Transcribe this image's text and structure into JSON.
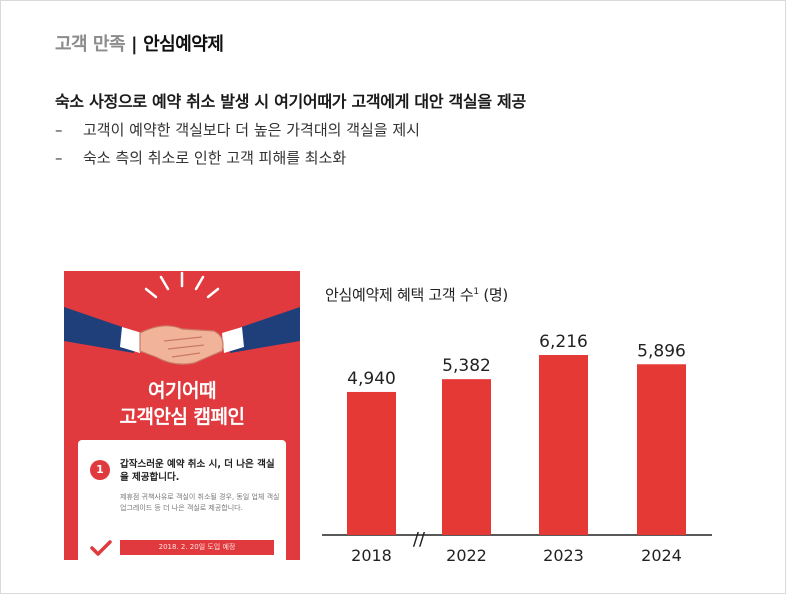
{
  "header": {
    "category": "고객 만족",
    "separator": "|",
    "topic": "안심예약제"
  },
  "lead": "숙소 사정으로 예약 취소 발생 시 여기어때가 고객에게 대안 객실을 제공",
  "bullets": [
    "고객이 예약한 객실보다 더 높은 가격대의 객실을 제시",
    "숙소 측의 취소로 인한 고객 피해를 최소화"
  ],
  "bullet_marker": "–",
  "poster": {
    "title_line1": "여기어때",
    "title_line2": "고객안심 캠페인",
    "card_number": "1",
    "card_heading": "갑작스러운 예약 취소 시, 더 나은 객실을 제공합니다.",
    "card_body": "제휴점 귀책사유로 객실이 취소될 경우, 동일 업체 객실 업그레이드 등 더 나은 객실로 제공합니다.",
    "card_date": "2018. 2. 20일 도입 예정",
    "colors": {
      "background": "#e03a3e"
    }
  },
  "chart": {
    "title": "안심예약제 혜택 고객 수",
    "footnote": "1",
    "unit": "(명)"
  },
  "chart_data": {
    "type": "bar",
    "title": "안심예약제 혜택 고객 수",
    "categories": [
      "2018",
      "2022",
      "2023",
      "2024"
    ],
    "values": [
      4940,
      5382,
      6216,
      5896
    ],
    "value_labels": [
      "4,940",
      "5,382",
      "6,216",
      "5,896"
    ],
    "axis_break_marker": "//",
    "color": "#e53935",
    "grid": false
  }
}
